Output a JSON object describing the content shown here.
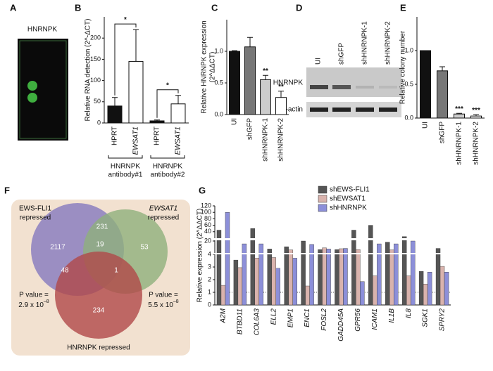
{
  "panel_labels": [
    "A",
    "B",
    "C",
    "D",
    "E",
    "F",
    "G"
  ],
  "array": {
    "label": "HNRNPK"
  },
  "blot": {
    "lanes": [
      "UI",
      "shGFP",
      "shHNRNPK-1",
      "shHNRNPK-2"
    ],
    "rows": [
      "HNRNPK",
      "β-actin"
    ]
  },
  "venn": {
    "sets": [
      [
        "EWS-FLI1",
        "repressed"
      ],
      [
        "EWSAT1",
        "repressed"
      ],
      [
        "HNRNPK repressed"
      ]
    ],
    "counts": {
      "ews_only": "2117",
      "ews_ewsat1": "231",
      "ewsat1_only": "53",
      "ews_hnrnpk": "48",
      "all": "19",
      "ewsat1_hnrnpk": "1",
      "hnrnpk_only": "234"
    },
    "p_values": [
      {
        "label": "P value =",
        "mantissa": "2.9 x 10",
        "exponent": "–8"
      },
      {
        "label": "P value =",
        "mantissa": "5.5 x 10",
        "exponent": "–8"
      }
    ]
  },
  "chart_data": [
    {
      "type": "bar",
      "ylabel": [
        "Relative RNA detection (2^-ΔCT)"
      ],
      "categories": [
        "HPRT",
        "EWSAT1",
        "HPRT",
        "EWSAT1"
      ],
      "italic_categories": [
        false,
        true,
        false,
        true
      ],
      "values": [
        40,
        145,
        5,
        45
      ],
      "errors": [
        20,
        75,
        2,
        20
      ],
      "colors": [
        "#111111",
        "#ffffff",
        "#111111",
        "#ffffff"
      ],
      "ylim": [
        0,
        250
      ],
      "yticks": [
        0,
        50,
        100,
        150,
        200
      ],
      "annotations": [
        "*",
        "*"
      ],
      "group_labels": [
        [
          "HNRNPK",
          "antibody#1"
        ],
        [
          "HNRNPK",
          "antibody#2"
        ]
      ]
    },
    {
      "type": "bar",
      "ylabel": [
        "Relative HNRNPK expression",
        "(2^ΔΔCT)"
      ],
      "categories": [
        "UI",
        "shGFP",
        "shHNRNPK-1",
        "shHNRNPK-2"
      ],
      "values": [
        1.0,
        1.07,
        0.55,
        0.27
      ],
      "errors": [
        0.01,
        0.15,
        0.07,
        0.1
      ],
      "colors": [
        "#111111",
        "#777777",
        "#cccccc",
        "#ffffff"
      ],
      "ylim": [
        0,
        1.5
      ],
      "yticks": [
        {
          "value": 0,
          "label": "0.0"
        },
        {
          "value": 0.5,
          "label": "0.5"
        },
        {
          "value": 1,
          "label": "1.0"
        }
      ],
      "significance": [
        null,
        null,
        "**",
        "**"
      ]
    },
    {
      "type": "bar",
      "ylabel": [
        "Relative colony number"
      ],
      "categories": [
        "UI",
        "shGFP",
        "shHNRNPK-1",
        "shHNRNPK-2"
      ],
      "values": [
        1.0,
        0.7,
        0.06,
        0.03
      ],
      "errors": [
        0.0,
        0.06,
        0.01,
        0.02
      ],
      "colors": [
        "#111111",
        "#777777",
        "#cccccc",
        "#ffffff"
      ],
      "ylim": [
        0,
        1.5
      ],
      "yticks": [
        {
          "value": 0,
          "label": "0.0"
        },
        {
          "value": 0.5,
          "label": "0.5"
        },
        {
          "value": 1,
          "label": "1.0"
        }
      ],
      "significance": [
        null,
        null,
        "***",
        "***"
      ]
    },
    {
      "type": "bar",
      "ylabel": [
        "Relative expression (2^ΔΔCT)"
      ],
      "categories": [
        "A2M",
        "BTBD11",
        "COL6A3",
        "ELL2",
        "EMP1",
        "ENC1",
        "FOSL2",
        "GADD45A",
        "GPR56",
        "ICAM1",
        "IL1B",
        "IL8",
        "SGK1",
        "SPRY2"
      ],
      "series": [
        {
          "name": "shEWS-FLI1",
          "color": "#555555",
          "values": [
            45,
            3.55,
            50,
            6,
            10,
            20,
            5,
            5,
            45,
            60,
            18,
            25,
            2.65,
            7
          ]
        },
        {
          "name": "shEWSAT1",
          "color": "#d9b3ad",
          "values": [
            1.55,
            2.95,
            3.7,
            3.75,
            4.5,
            1.5,
            8,
            6.5,
            5,
            2.3,
            4.5,
            2.3,
            1.65,
            3.05
          ]
        },
        {
          "name": "shHNRNPK",
          "color": "#8c8fd9",
          "values": [
            100,
            15,
            15,
            2.9,
            3.7,
            14,
            6,
            7,
            1.85,
            15,
            15,
            20,
            2.6,
            2.6
          ]
        }
      ],
      "ylim": [
        0,
        120
      ],
      "yticks": [
        0,
        1,
        2,
        3,
        4,
        20,
        40,
        60,
        80,
        100,
        120
      ],
      "axis_breaks": [
        4,
        20
      ],
      "reference_line": 1
    }
  ]
}
